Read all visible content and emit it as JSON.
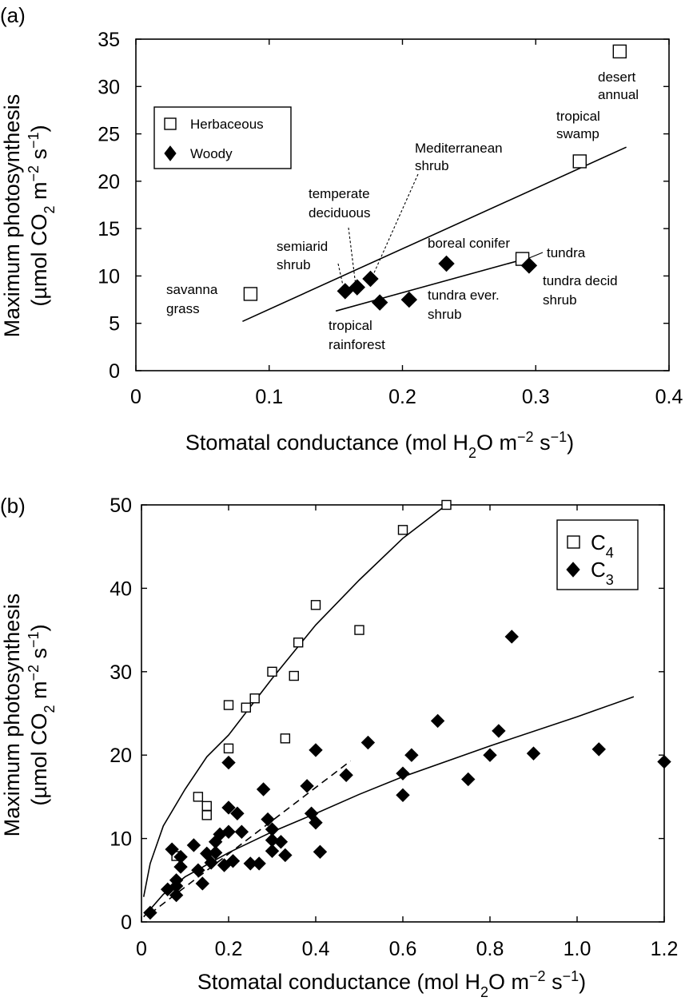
{
  "chart_data": [
    {
      "panel": "(a)",
      "type": "scatter",
      "xlabel": "Stomatal conductance (mol H2O m−2 s−1)",
      "ylabel_line1": "Maximum photosynthesis",
      "ylabel_line2": "(µmol CO2 m−2 s−1)",
      "xlim": [
        0,
        0.4
      ],
      "ylim": [
        0,
        35
      ],
      "xticks": [
        0,
        0.1,
        0.2,
        0.3,
        0.4
      ],
      "xtick_labels": [
        "0",
        "0.1",
        "0.2",
        "0.3",
        "0.4"
      ],
      "yticks": [
        0,
        5,
        10,
        15,
        20,
        25,
        30,
        35
      ],
      "ytick_labels": [
        "0",
        "5",
        "10",
        "15",
        "20",
        "25",
        "30",
        "35"
      ],
      "legend_position": "upper-left",
      "series": [
        {
          "name": "Herbaceous",
          "marker": "open-square",
          "points": [
            {
              "label": "savanna grass",
              "x": 0.086,
              "y": 8.1
            },
            {
              "label": "tundra",
              "x": 0.29,
              "y": 11.8
            },
            {
              "label": "tropical swamp",
              "x": 0.333,
              "y": 22.1
            },
            {
              "label": "desert annual",
              "x": 0.363,
              "y": 33.7
            }
          ]
        },
        {
          "name": "Woody",
          "marker": "filled-diamond",
          "points": [
            {
              "label": "semiarid shrub",
              "x": 0.157,
              "y": 8.4
            },
            {
              "label": "temperate deciduous",
              "x": 0.166,
              "y": 8.8
            },
            {
              "label": "Mediterranean shrub",
              "x": 0.176,
              "y": 9.7
            },
            {
              "label": "tropical rainforest",
              "x": 0.183,
              "y": 7.2
            },
            {
              "label": "tundra ever. shrub",
              "x": 0.205,
              "y": 7.5
            },
            {
              "label": "boreal conifer",
              "x": 0.233,
              "y": 11.3
            },
            {
              "label": "tundra decid shrub",
              "x": 0.295,
              "y": 11.1
            }
          ]
        }
      ],
      "fit_lines": [
        {
          "x": [
            0.08,
            0.368
          ],
          "y": [
            5.2,
            23.6
          ]
        },
        {
          "x": [
            0.15,
            0.292
          ],
          "y": [
            6.3,
            11.8
          ]
        }
      ],
      "annotations": [
        {
          "lines": [
            "desert",
            "annual"
          ],
          "leader": "none"
        },
        {
          "lines": [
            "tropical",
            "swamp"
          ],
          "leader": "none"
        },
        {
          "lines": [
            "Mediterranean",
            "shrub"
          ],
          "leader": "dashed"
        },
        {
          "lines": [
            "temperate",
            "deciduous"
          ],
          "leader": "dashed"
        },
        {
          "lines": [
            "semiarid",
            "shrub"
          ],
          "leader": "dashed"
        },
        {
          "lines": [
            "boreal conifer"
          ],
          "leader": "none"
        },
        {
          "lines": [
            "tundra"
          ],
          "leader": "solid"
        },
        {
          "lines": [
            "tundra decid",
            "shrub"
          ],
          "leader": "none"
        },
        {
          "lines": [
            "savanna",
            "grass"
          ],
          "leader": "none"
        },
        {
          "lines": [
            "tundra ever.",
            "shrub"
          ],
          "leader": "none"
        },
        {
          "lines": [
            "tropical",
            "rainforest"
          ],
          "leader": "none"
        }
      ]
    },
    {
      "panel": "(b)",
      "type": "scatter",
      "xlabel": "Stomatal conductance (mol H2O m−2 s−1)",
      "ylabel_line1": "Maximum photosynthesis",
      "ylabel_line2": "(µmol CO2 m−2 s−1)",
      "xlim": [
        0,
        1.2
      ],
      "ylim": [
        0,
        50
      ],
      "xticks": [
        0,
        0.2,
        0.4,
        0.6,
        0.8,
        1.0,
        1.2
      ],
      "xtick_labels": [
        "0",
        "0.2",
        "0.4",
        "0.6",
        "0.8",
        "1.0",
        "1.2"
      ],
      "yticks": [
        0,
        10,
        20,
        30,
        40,
        50
      ],
      "ytick_labels": [
        "0",
        "10",
        "20",
        "30",
        "40",
        "50"
      ],
      "legend_position": "upper-right",
      "series": [
        {
          "name": "C4",
          "marker": "open-square",
          "points": [
            [
              0.08,
              7.9
            ],
            [
              0.13,
              15.0
            ],
            [
              0.15,
              13.9
            ],
            [
              0.15,
              12.8
            ],
            [
              0.2,
              20.8
            ],
            [
              0.2,
              26.0
            ],
            [
              0.24,
              25.7
            ],
            [
              0.26,
              26.8
            ],
            [
              0.3,
              30.0
            ],
            [
              0.33,
              22.0
            ],
            [
              0.35,
              29.5
            ],
            [
              0.36,
              33.5
            ],
            [
              0.4,
              38.0
            ],
            [
              0.5,
              35.0
            ],
            [
              0.6,
              47.0
            ],
            [
              0.7,
              50.0
            ]
          ]
        },
        {
          "name": "C3",
          "marker": "filled-diamond",
          "points": [
            [
              0.02,
              1.1
            ],
            [
              0.06,
              3.9
            ],
            [
              0.07,
              8.7
            ],
            [
              0.08,
              5.0
            ],
            [
              0.08,
              4.3
            ],
            [
              0.08,
              3.2
            ],
            [
              0.09,
              6.6
            ],
            [
              0.09,
              7.8
            ],
            [
              0.12,
              9.2
            ],
            [
              0.13,
              6.2
            ],
            [
              0.14,
              4.6
            ],
            [
              0.15,
              8.2
            ],
            [
              0.16,
              7.1
            ],
            [
              0.17,
              8.3
            ],
            [
              0.17,
              9.6
            ],
            [
              0.18,
              10.5
            ],
            [
              0.19,
              6.8
            ],
            [
              0.2,
              10.8
            ],
            [
              0.2,
              13.7
            ],
            [
              0.2,
              19.1
            ],
            [
              0.21,
              7.3
            ],
            [
              0.22,
              13.0
            ],
            [
              0.23,
              10.8
            ],
            [
              0.25,
              7.0
            ],
            [
              0.27,
              7.0
            ],
            [
              0.28,
              15.9
            ],
            [
              0.29,
              12.3
            ],
            [
              0.3,
              11.1
            ],
            [
              0.3,
              9.8
            ],
            [
              0.3,
              8.5
            ],
            [
              0.32,
              9.6
            ],
            [
              0.33,
              8.0
            ],
            [
              0.39,
              13.0
            ],
            [
              0.4,
              11.9
            ],
            [
              0.4,
              20.6
            ],
            [
              0.41,
              8.4
            ],
            [
              0.38,
              16.3
            ],
            [
              0.47,
              17.6
            ],
            [
              0.52,
              21.5
            ],
            [
              0.6,
              17.8
            ],
            [
              0.6,
              15.2
            ],
            [
              0.62,
              20.0
            ],
            [
              0.68,
              24.1
            ],
            [
              0.75,
              17.1
            ],
            [
              0.8,
              20.0
            ],
            [
              0.82,
              22.9
            ],
            [
              0.85,
              34.2
            ],
            [
              0.9,
              20.2
            ],
            [
              1.05,
              20.7
            ],
            [
              1.2,
              19.2
            ]
          ]
        }
      ],
      "fit_curves": [
        {
          "style": "solid",
          "series": "C4",
          "x": [
            0.005,
            0.02,
            0.05,
            0.1,
            0.15,
            0.2,
            0.3,
            0.4,
            0.5,
            0.6,
            0.7
          ],
          "y": [
            3.0,
            7.0,
            11.5,
            15.9,
            19.8,
            22.4,
            29.2,
            35.6,
            41.0,
            46.0,
            50.0
          ]
        },
        {
          "style": "solid",
          "series": "C3",
          "x": [
            0.005,
            0.05,
            0.1,
            0.2,
            0.3,
            0.4,
            0.5,
            0.6,
            0.8,
            1.0,
            1.13
          ],
          "y": [
            0.6,
            3.3,
            5.4,
            8.3,
            10.8,
            13.0,
            15.3,
            17.4,
            21.1,
            24.6,
            27.0
          ]
        },
        {
          "style": "dashed",
          "x": [
            0.02,
            0.48
          ],
          "y": [
            1.0,
            19.3
          ]
        }
      ]
    }
  ]
}
